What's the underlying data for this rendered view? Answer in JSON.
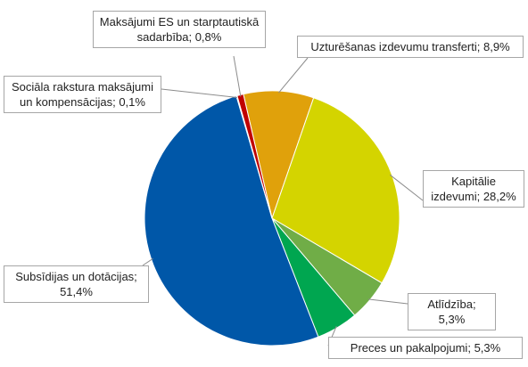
{
  "chart_data": {
    "type": "pie",
    "categories": [
      "Uzturēšanas izdevumu transferti;",
      "Kapitālie izdevumi;",
      "Atlīdzība;",
      "Preces un pakalpojumi;",
      "Subsīdijas un dotācijas;",
      "Sociāla rakstura maksājumi un kompensācijas;",
      "Maksājumi ES un starptautiskā sadarbība;"
    ],
    "values": [
      8.9,
      28.2,
      5.3,
      5.3,
      51.4,
      0.1,
      0.8
    ],
    "value_labels": [
      "8,9%",
      "28,2%",
      "5,3%",
      "5,3%",
      "51,4%",
      "0,1%",
      "0,8%"
    ],
    "colors": [
      "#e0a10b",
      "#d4d400",
      "#70ad47",
      "#00a650",
      "#0057a8",
      "#5b9bd5",
      "#c00000"
    ]
  }
}
